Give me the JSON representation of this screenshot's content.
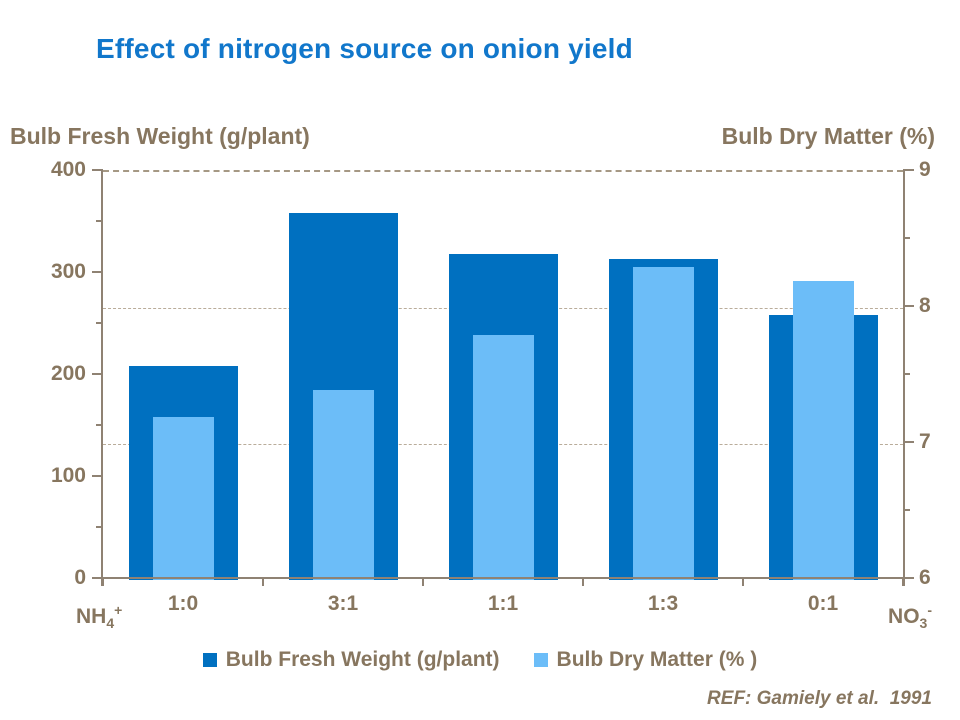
{
  "title": "Effect of nitrogen source on onion yield",
  "reference": "REF: Gamiely et al.  1991",
  "colors": {
    "title": "#1177CB",
    "text": "#87765F",
    "axis": "#8F8273",
    "grid": "#B9AC9A",
    "fresh_weight": "#0070C0",
    "dry_matter": "#6CBDF8"
  },
  "chart_data": {
    "type": "bar",
    "title": "Effect of nitrogen source on onion yield",
    "categories": [
      "1:0",
      "3:1",
      "1:1",
      "1:3",
      "0:1"
    ],
    "series": [
      {
        "name": "Bulb Fresh Weight (g/plant)",
        "axis": "left",
        "color_key": "fresh_weight",
        "values": [
          210,
          360,
          320,
          315,
          260
        ]
      },
      {
        "name": "Bulb Dry Matter (%)",
        "axis": "right",
        "color_key": "dry_matter",
        "values": [
          7.2,
          7.4,
          7.8,
          8.3,
          8.2
        ]
      }
    ],
    "left_axis": {
      "label": "Bulb Fresh Weight (g/plant)",
      "min": 0,
      "max": 400,
      "major_ticks": [
        0,
        100,
        200,
        300,
        400
      ],
      "minor_ticks": [
        50,
        150,
        250,
        350
      ]
    },
    "right_axis": {
      "label": "Bulb Dry Matter (%)",
      "min": 6,
      "max": 9,
      "major_ticks": [
        6,
        7,
        8,
        9
      ],
      "minor_ticks": [
        6.5,
        7.5,
        8.5
      ]
    },
    "gridlines_at_right_values": [
      7,
      8,
      9
    ],
    "grid": "dashed horizontal at right-axis majors",
    "legend_position": "bottom",
    "legend": [
      "Bulb Fresh Weight (g/plant)",
      "Bulb Dry Matter (% )"
    ],
    "x_end_labels": {
      "left": {
        "base": "NH",
        "sub": "4",
        "sup": "+"
      },
      "right": {
        "base": "NO",
        "sub": "3",
        "sup": "-"
      }
    }
  }
}
